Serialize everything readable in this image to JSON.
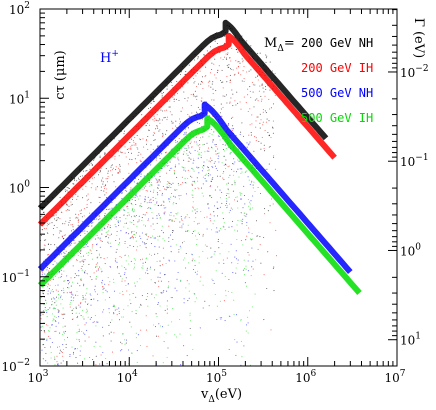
{
  "chart_data": {
    "type": "scatter",
    "x_scale": "log",
    "y_scale": "log",
    "xlim": [
      1000,
      10000000
    ],
    "ylim": [
      0.01,
      100
    ],
    "xlabel_main": "v",
    "xlabel_sub": "Δ",
    "xlabel_unit": "(eV)",
    "ylabel": "cτ (μm)",
    "ylabel_right": "Γ (eV)",
    "annotation_main": "H",
    "annotation_sup": "+",
    "x_ticks": [
      {
        "value": 1000,
        "base": "10",
        "exp": "3"
      },
      {
        "value": 10000,
        "base": "10",
        "exp": "4"
      },
      {
        "value": 100000,
        "base": "10",
        "exp": "5"
      },
      {
        "value": 1000000,
        "base": "10",
        "exp": "6"
      },
      {
        "value": 10000000,
        "base": "10",
        "exp": "7"
      }
    ],
    "y_ticks_left": [
      {
        "value": 0.01,
        "base": "10",
        "exp": "−2"
      },
      {
        "value": 0.1,
        "base": "10",
        "exp": "−1"
      },
      {
        "value": 1,
        "base": "10",
        "exp": "0"
      },
      {
        "value": 10,
        "base": "10",
        "exp": "1"
      },
      {
        "value": 100,
        "base": "10",
        "exp": "2"
      }
    ],
    "y_ticks_right": [
      {
        "gamma": 0.01,
        "base": "10",
        "exp": "−2"
      },
      {
        "gamma": 0.1,
        "base": "10",
        "exp": "−1"
      },
      {
        "gamma": 1,
        "base": "10",
        "exp": "0"
      },
      {
        "gamma": 10,
        "base": "10",
        "exp": "1"
      }
    ],
    "legend": {
      "header_main": "M",
      "header_sub": "Δ",
      "header_eq": "=",
      "placement": "top-right"
    },
    "series": [
      {
        "name": "200 GeV NH",
        "color": "#000000",
        "peak": [
          120000,
          70
        ],
        "lower_end_y": [
          0.01,
          1600
        ]
      },
      {
        "name": "200 GeV IH",
        "color": "#ff0000",
        "peak": [
          130000,
          50
        ],
        "lower_end_y": [
          0.01,
          2000
        ]
      },
      {
        "name": "500 GeV NH",
        "color": "#0000ff",
        "peak": [
          70000,
          8.5
        ],
        "lower_end_y": [
          0.01,
          3000
        ]
      },
      {
        "name": "500 GeV IH",
        "color": "#00dd00",
        "peak": [
          75000,
          6
        ],
        "lower_end_y": [
          0.01,
          3800
        ]
      }
    ],
    "grid": false
  }
}
